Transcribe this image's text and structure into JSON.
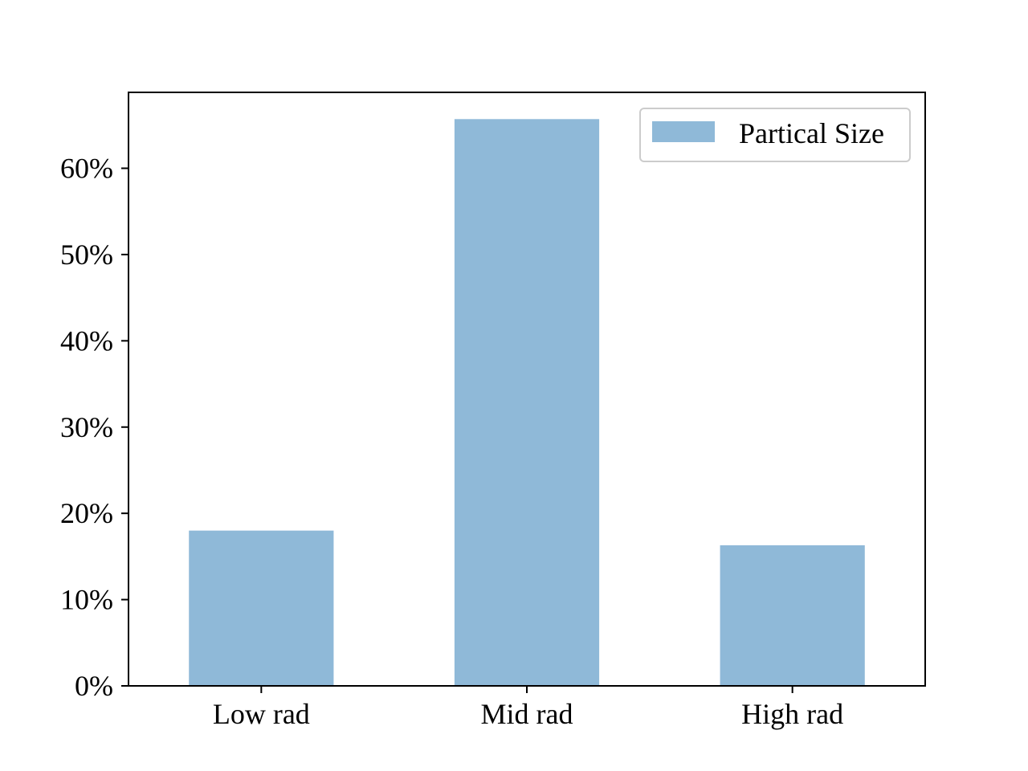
{
  "chart_data": {
    "type": "bar",
    "title": "",
    "xlabel": "",
    "ylabel": "",
    "categories": [
      "Low rad",
      "Mid rad",
      "High rad"
    ],
    "series": [
      {
        "name": "Partical Size",
        "values": [
          18.0,
          65.7,
          16.3
        ],
        "color": "#8fb9d8"
      }
    ],
    "ylim": [
      0,
      68.8
    ],
    "yticks": [
      {
        "value": 0,
        "label": "0%"
      },
      {
        "value": 10,
        "label": "10%"
      },
      {
        "value": 20,
        "label": "20%"
      },
      {
        "value": 30,
        "label": "30%"
      },
      {
        "value": 40,
        "label": "40%"
      },
      {
        "value": 50,
        "label": "50%"
      },
      {
        "value": 60,
        "label": "60%"
      }
    ],
    "grid": false,
    "legend": {
      "position": "top-right"
    }
  }
}
